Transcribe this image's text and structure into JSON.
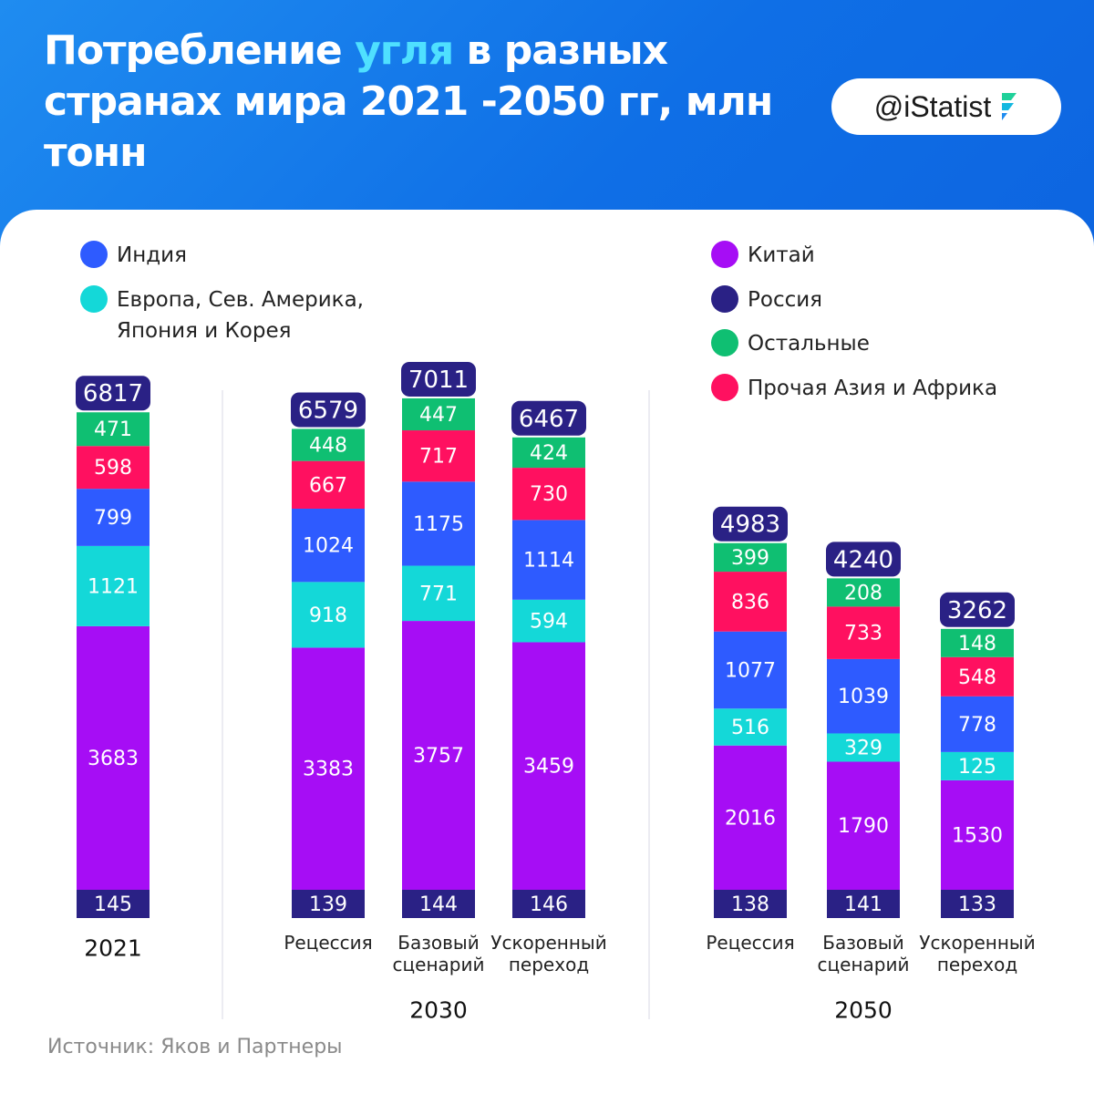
{
  "title": {
    "before": "Потребление ",
    "highlight": "угля",
    "after": " в разных странах мира 2021 -2050 гг, млн тонн"
  },
  "brand": {
    "handle": "@iStatist"
  },
  "source": "Источник: Яков и Партнеры",
  "colors": {
    "header_bg": "#0f6fe6",
    "title_highlight": "#4fe0ff",
    "total_badge": "#2a2185",
    "label_text": "#ffffff"
  },
  "legend": [
    {
      "key": "india",
      "label": "Индия",
      "color": "#2e5bff"
    },
    {
      "key": "europe",
      "label": "Европа, Сев. Америка, Япония и Корея",
      "color": "#14d8d8"
    },
    {
      "key": "china",
      "label": "Китай",
      "color": "#a60df5"
    },
    {
      "key": "russia",
      "label": "Россия",
      "color": "#2a2185"
    },
    {
      "key": "others",
      "label": "Остальные",
      "color": "#0fbf72"
    },
    {
      "key": "asia_africa",
      "label": "Прочая Азия и Африка",
      "color": "#ff1060"
    }
  ],
  "chart_data": {
    "type": "bar",
    "stacked": true,
    "units": "млн тонн",
    "stack_order_bottom_to_top": [
      "Россия",
      "Китай",
      "Европа, Сев. Америка, Япония и Корея",
      "Индия",
      "Прочая Азия и Африка",
      "Остальные"
    ],
    "groups": [
      {
        "label": "",
        "categories": [
          {
            "label": "2021",
            "total": "6817",
            "values": {
              "Россия": 145,
              "Китай": 3683,
              "Европа, Сев. Америка, Япония и Корея": 1121,
              "Индия": 799,
              "Прочая Азия и Африка": 598,
              "Остальные": 471
            }
          }
        ]
      },
      {
        "label": "2030",
        "categories": [
          {
            "label": "Рецессия",
            "total": "6579",
            "values": {
              "Россия": 139,
              "Китай": 3383,
              "Европа, Сев. Америка, Япония и Корея": 918,
              "Индия": 1024,
              "Прочая Азия и Африка": 667,
              "Остальные": 448
            }
          },
          {
            "label": "Базовый сценарий",
            "total": "7011",
            "values": {
              "Россия": 144,
              "Китай": 3757,
              "Европа, Сев. Америка, Япония и Корея": 771,
              "Индия": 1175,
              "Прочая Азия и Африка": 717,
              "Остальные": 447
            }
          },
          {
            "label": "Ускоренный переход",
            "total": "6467",
            "values": {
              "Россия": 146,
              "Китай": 3459,
              "Европа, Сев. Америка, Япония и Корея": 594,
              "Индия": 1114,
              "Прочая Азия и Африка": 730,
              "Остальные": 424
            }
          }
        ]
      },
      {
        "label": "2050",
        "categories": [
          {
            "label": "Рецессия",
            "total": "4983",
            "values": {
              "Россия": 138,
              "Китай": 2016,
              "Европа, Сев. Америка, Япония и Корея": 516,
              "Индия": 1077,
              "Прочая Азия и Африка": 836,
              "Остальные": 399
            }
          },
          {
            "label": "Базовый сценарий",
            "total": "4240",
            "values": {
              "Россия": 141,
              "Китай": 1790,
              "Европа, Сев. Америка, Япония и Корея": 329,
              "Индия": 1039,
              "Прочая Азия и Африка": 733,
              "Остальные": 208
            }
          },
          {
            "label": "Ускоренный переход",
            "total": "3262",
            "values": {
              "Россия": 133,
              "Китай": 1530,
              "Европа, Сев. Америка, Япония и Корея": 125,
              "Индия": 778,
              "Прочая Азия и Африка": 548,
              "Остальные": 148
            }
          }
        ]
      }
    ]
  }
}
